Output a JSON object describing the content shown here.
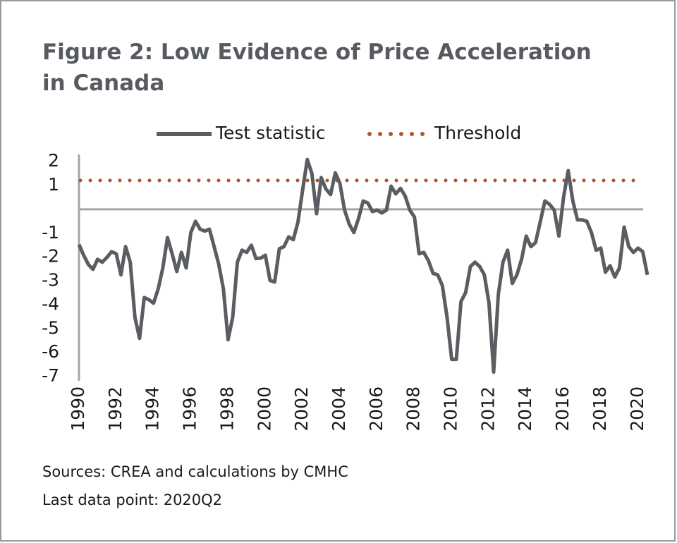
{
  "chart_data": {
    "type": "line",
    "title": [
      "Figure 2: Low Evidence of Price Acceleration",
      "in Canada"
    ],
    "notes": [
      "Sources: CREA and calculations by CMHC",
      "Last data point: 2020Q2"
    ],
    "x": [
      1990,
      1990.25,
      1990.5,
      1990.75,
      1991,
      1991.25,
      1991.5,
      1991.75,
      1992,
      1992.25,
      1992.5,
      1992.75,
      1993,
      1993.25,
      1993.5,
      1993.75,
      1994,
      1994.25,
      1994.5,
      1994.75,
      1995,
      1995.25,
      1995.5,
      1995.75,
      1996,
      1996.25,
      1996.5,
      1996.75,
      1997,
      1997.25,
      1997.5,
      1997.75,
      1998,
      1998.25,
      1998.5,
      1998.75,
      1999,
      1999.25,
      1999.5,
      1999.75,
      2000,
      2000.25,
      2000.5,
      2000.75,
      2001,
      2001.25,
      2001.5,
      2001.75,
      2002,
      2002.25,
      2002.5,
      2002.75,
      2003,
      2003.25,
      2003.5,
      2003.75,
      2004,
      2004.25,
      2004.5,
      2004.75,
      2005,
      2005.25,
      2005.5,
      2005.75,
      2006,
      2006.25,
      2006.5,
      2006.75,
      2007,
      2007.25,
      2007.5,
      2007.75,
      2008,
      2008.25,
      2008.5,
      2008.75,
      2009,
      2009.25,
      2009.5,
      2009.75,
      2010,
      2010.25,
      2010.5,
      2010.75,
      2011,
      2011.25,
      2011.5,
      2011.75,
      2012,
      2012.25,
      2012.5,
      2012.75,
      2013,
      2013.25,
      2013.5,
      2013.75,
      2014,
      2014.25,
      2014.5,
      2014.75,
      2015,
      2015.25,
      2015.5,
      2015.75,
      2016,
      2016.25,
      2016.5,
      2016.75,
      2017,
      2017.25,
      2017.5,
      2017.75,
      2018,
      2018.25,
      2018.5,
      2018.75,
      2019,
      2019.25,
      2019.5,
      2019.75,
      2020,
      2020.25,
      2020.5
    ],
    "series": [
      {
        "name": "Test statistic",
        "color": "#5a5d61",
        "values": [
          -1.47,
          -1.92,
          -2.3,
          -2.51,
          -2.09,
          -2.21,
          -2.01,
          -1.77,
          -1.86,
          -2.74,
          -1.56,
          -2.21,
          -4.51,
          -5.4,
          -3.69,
          -3.78,
          -3.93,
          -3.33,
          -2.45,
          -1.18,
          -1.86,
          -2.6,
          -1.8,
          -2.45,
          -0.97,
          -0.5,
          -0.83,
          -0.91,
          -0.83,
          -1.56,
          -2.3,
          -3.33,
          -5.46,
          -4.51,
          -2.21,
          -1.71,
          -1.8,
          -1.5,
          -2.06,
          -2.04,
          -1.92,
          -2.98,
          -3.04,
          -1.65,
          -1.56,
          -1.15,
          -1.27,
          -0.53,
          0.8,
          2.09,
          1.5,
          -0.18,
          1.33,
          0.86,
          0.62,
          1.53,
          1.09,
          -0.03,
          -0.62,
          -0.97,
          -0.38,
          0.35,
          0.27,
          -0.09,
          -0.03,
          -0.15,
          -0.03,
          0.97,
          0.65,
          0.88,
          0.56,
          -0.03,
          -0.32,
          -1.86,
          -1.8,
          -2.15,
          -2.68,
          -2.74,
          -3.19,
          -4.51,
          -6.28,
          -6.28,
          -3.86,
          -3.48,
          -2.39,
          -2.21,
          -2.39,
          -2.74,
          -3.92,
          -6.81,
          -3.57,
          -2.21,
          -1.71,
          -3.1,
          -2.74,
          -2.09,
          -1.12,
          -1.56,
          -1.39,
          -0.53,
          0.35,
          0.21,
          -0.03,
          -1.12,
          0.5,
          1.62,
          0.35,
          -0.44,
          -0.44,
          -0.5,
          -0.97,
          -1.71,
          -1.62,
          -2.63,
          -2.36,
          -2.83,
          -2.45,
          -0.74,
          -1.56,
          -1.8,
          -1.62,
          -1.77,
          -2.74
        ]
      }
    ],
    "threshold": {
      "name": "Threshold",
      "value": 1.21,
      "color": "#b5522a"
    },
    "xlim": [
      1990,
      2020.5
    ],
    "xticks": [
      1990,
      1992,
      1994,
      1996,
      1998,
      2000,
      2002,
      2004,
      2006,
      2008,
      2010,
      2012,
      2014,
      2016,
      2018,
      2020
    ],
    "ylim": [
      -7,
      2.3
    ],
    "yticks": [
      2,
      1,
      -1,
      -2,
      -3,
      -4,
      -5,
      -6,
      -7
    ]
  }
}
